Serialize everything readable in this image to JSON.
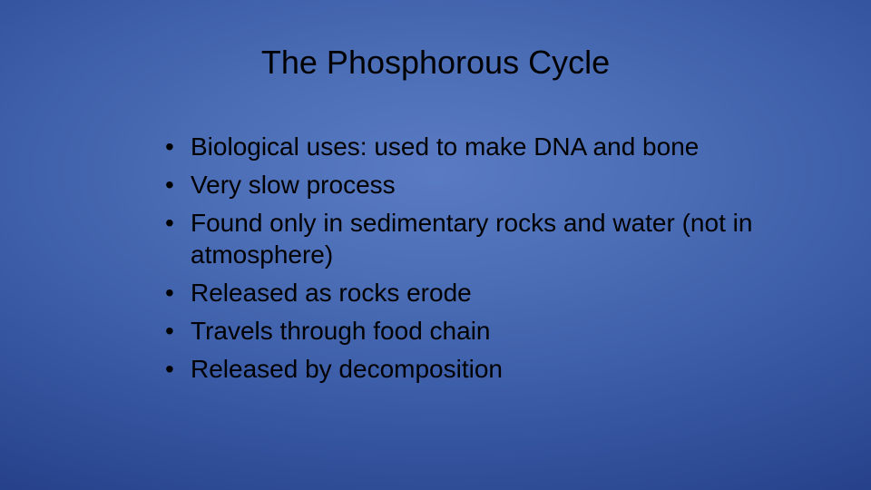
{
  "slide": {
    "title": "The Phosphorous Cycle",
    "title_fontsize": 36,
    "title_color": "#000000",
    "bullets": [
      "Biological uses: used to make DNA and bone",
      "Very slow process",
      "Found only in sedimentary rocks and water (not in atmosphere)",
      "Released as rocks erode",
      "Travels through food chain",
      "Released by decomposition"
    ],
    "bullet_fontsize": 28,
    "bullet_color": "#000000",
    "line_height": 1.28,
    "background": {
      "type": "radial-gradient",
      "center_color": "#5a7bc4",
      "edge_color": "#102352"
    }
  }
}
